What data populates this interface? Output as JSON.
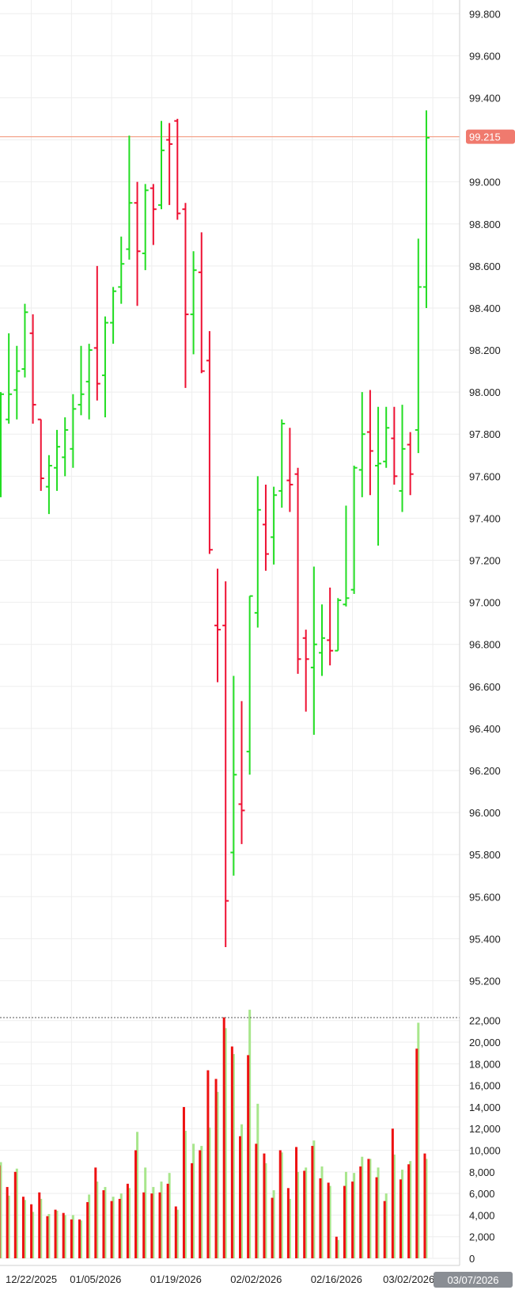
{
  "chart_data": {
    "type": "ohlc",
    "price_axis": {
      "ylim": [
        95.1,
        99.82
      ],
      "ticks": [
        "95.200",
        "95.400",
        "95.600",
        "95.800",
        "96.000",
        "96.200",
        "96.400",
        "96.600",
        "96.800",
        "97.000",
        "97.200",
        "97.400",
        "97.600",
        "97.800",
        "98.000",
        "98.200",
        "98.400",
        "98.600",
        "98.800",
        "99.000",
        "99.200",
        "99.400",
        "99.600",
        "99.800"
      ]
    },
    "volume_axis": {
      "ylim": [
        0,
        23300
      ],
      "ticks": [
        "0",
        "2,000",
        "4,000",
        "6,000",
        "8,000",
        "10,000",
        "12,000",
        "14,000",
        "16,000",
        "18,000",
        "20,000",
        "22,000"
      ]
    },
    "date_ticks": [
      {
        "label": "12/22/2025",
        "index": 4
      },
      {
        "label": "01/05/2026",
        "index": 12
      },
      {
        "label": "01/19/2026",
        "index": 22
      },
      {
        "label": "02/02/2026",
        "index": 32
      },
      {
        "label": "02/16/2026",
        "index": 42
      },
      {
        "label": "03/02/2026",
        "index": 51
      }
    ],
    "last_price": {
      "value": 99.215,
      "label": "99.215"
    },
    "cursor_date": "03/07/2026",
    "colors": {
      "up": "#22dd22",
      "down": "#ee1133",
      "volume_up": "#a8e68c",
      "volume_down": "#ee1111",
      "last_price_line": "#f4a48c",
      "last_price_tag": "#f07a6e",
      "cursor_tag": "#8a8e94"
    },
    "bars": [
      {
        "o": 97.87,
        "h": 98.0,
        "l": 97.5,
        "c": 97.99
      },
      {
        "o": 97.87,
        "h": 98.28,
        "l": 97.85,
        "c": 97.99
      },
      {
        "o": 98.01,
        "h": 98.22,
        "l": 97.87,
        "c": 98.1
      },
      {
        "o": 98.11,
        "h": 98.42,
        "l": 98.07,
        "c": 98.38
      },
      {
        "o": 98.28,
        "h": 98.37,
        "l": 97.85,
        "c": 97.94
      },
      {
        "o": 97.87,
        "h": 97.87,
        "l": 97.53,
        "c": 97.59
      },
      {
        "o": 97.55,
        "h": 97.7,
        "l": 97.42,
        "c": 97.65
      },
      {
        "o": 97.64,
        "h": 97.82,
        "l": 97.53,
        "c": 97.74
      },
      {
        "o": 97.69,
        "h": 97.88,
        "l": 97.6,
        "c": 97.82
      },
      {
        "o": 97.73,
        "h": 97.99,
        "l": 97.64,
        "c": 97.92
      },
      {
        "o": 97.94,
        "h": 98.22,
        "l": 97.89,
        "c": 97.99
      },
      {
        "o": 98.05,
        "h": 98.23,
        "l": 97.87,
        "c": 98.2
      },
      {
        "o": 98.21,
        "h": 98.6,
        "l": 97.96,
        "c": 98.04
      },
      {
        "o": 98.08,
        "h": 98.36,
        "l": 97.88,
        "c": 98.33
      },
      {
        "o": 98.33,
        "h": 98.5,
        "l": 98.23,
        "c": 98.48
      },
      {
        "o": 98.5,
        "h": 98.74,
        "l": 98.42,
        "c": 98.61
      },
      {
        "o": 98.68,
        "h": 99.22,
        "l": 98.63,
        "c": 98.9
      },
      {
        "o": 98.9,
        "h": 99.0,
        "l": 98.41,
        "c": 98.67
      },
      {
        "o": 98.66,
        "h": 98.99,
        "l": 98.58,
        "c": 98.96
      },
      {
        "o": 98.97,
        "h": 98.99,
        "l": 98.7,
        "c": 98.87
      },
      {
        "o": 98.89,
        "h": 99.29,
        "l": 98.87,
        "c": 99.15
      },
      {
        "o": 99.2,
        "h": 99.28,
        "l": 98.89,
        "c": 99.18
      },
      {
        "o": 99.29,
        "h": 99.3,
        "l": 98.82,
        "c": 98.85
      },
      {
        "o": 98.87,
        "h": 98.9,
        "l": 98.02,
        "c": 98.37
      },
      {
        "o": 98.37,
        "h": 98.67,
        "l": 98.18,
        "c": 98.58
      },
      {
        "o": 98.57,
        "h": 98.76,
        "l": 98.09,
        "c": 98.1
      },
      {
        "o": 98.15,
        "h": 98.29,
        "l": 97.23,
        "c": 97.25
      },
      {
        "o": 96.89,
        "h": 97.16,
        "l": 96.62,
        "c": 96.87
      },
      {
        "o": 96.89,
        "h": 97.1,
        "l": 95.36,
        "c": 95.58
      },
      {
        "o": 95.81,
        "h": 96.65,
        "l": 95.7,
        "c": 96.18
      },
      {
        "o": 96.04,
        "h": 96.53,
        "l": 95.85,
        "c": 96.01
      },
      {
        "o": 96.29,
        "h": 97.03,
        "l": 96.18,
        "c": 97.03
      },
      {
        "o": 96.95,
        "h": 97.6,
        "l": 96.88,
        "c": 97.44
      },
      {
        "o": 97.37,
        "h": 97.56,
        "l": 97.15,
        "c": 97.23
      },
      {
        "o": 97.31,
        "h": 97.55,
        "l": 97.18,
        "c": 97.51
      },
      {
        "o": 97.53,
        "h": 97.87,
        "l": 97.45,
        "c": 97.85
      },
      {
        "o": 97.58,
        "h": 97.83,
        "l": 97.43,
        "c": 97.56
      },
      {
        "o": 97.61,
        "h": 97.64,
        "l": 96.66,
        "c": 96.73
      },
      {
        "o": 96.83,
        "h": 96.87,
        "l": 96.48,
        "c": 96.73
      },
      {
        "o": 96.69,
        "h": 97.17,
        "l": 96.37,
        "c": 96.8
      },
      {
        "o": 96.76,
        "h": 96.99,
        "l": 96.65,
        "c": 96.83
      },
      {
        "o": 96.82,
        "h": 97.07,
        "l": 96.7,
        "c": 96.77
      },
      {
        "o": 96.77,
        "h": 97.02,
        "l": 96.77,
        "c": 97.01
      },
      {
        "o": 96.99,
        "h": 97.46,
        "l": 96.98,
        "c": 97.02
      },
      {
        "o": 97.06,
        "h": 97.65,
        "l": 97.04,
        "c": 97.64
      },
      {
        "o": 97.63,
        "h": 98.0,
        "l": 97.5,
        "c": 97.8
      },
      {
        "o": 97.81,
        "h": 98.01,
        "l": 97.51,
        "c": 97.72
      },
      {
        "o": 97.65,
        "h": 97.93,
        "l": 97.27,
        "c": 97.66
      },
      {
        "o": 97.67,
        "h": 97.93,
        "l": 97.64,
        "c": 97.83
      },
      {
        "o": 97.78,
        "h": 97.93,
        "l": 97.56,
        "c": 97.6
      },
      {
        "o": 97.53,
        "h": 97.94,
        "l": 97.43,
        "c": 97.73
      },
      {
        "o": 97.75,
        "h": 97.81,
        "l": 97.51,
        "c": 97.61
      },
      {
        "o": 97.82,
        "h": 98.73,
        "l": 97.71,
        "c": 98.5
      },
      {
        "o": 98.5,
        "h": 99.34,
        "l": 98.4,
        "c": 99.21
      }
    ],
    "volume": [
      {
        "down": 8600,
        "up": 8900
      },
      {
        "down": 6600,
        "up": 5800
      },
      {
        "down": 8000,
        "up": 8300
      },
      {
        "down": 5700,
        "up": 5400
      },
      {
        "down": 5000,
        "up": 4300
      },
      {
        "down": 6100,
        "up": 5500
      },
      {
        "down": 3900,
        "up": 4100
      },
      {
        "down": 4500,
        "up": 4400
      },
      {
        "down": 4200,
        "up": 4000
      },
      {
        "down": 3600,
        "up": 4000
      },
      {
        "down": 3600,
        "up": 3500
      },
      {
        "down": 5200,
        "up": 5900
      },
      {
        "down": 8400,
        "up": 7100
      },
      {
        "down": 6300,
        "up": 6600
      },
      {
        "down": 5300,
        "up": 5700
      },
      {
        "down": 5500,
        "up": 6000
      },
      {
        "down": 6900,
        "up": 6500
      },
      {
        "down": 10000,
        "up": 11700
      },
      {
        "down": 6100,
        "up": 8400
      },
      {
        "down": 6000,
        "up": 6600
      },
      {
        "down": 6100,
        "up": 7100
      },
      {
        "down": 6900,
        "up": 7900
      },
      {
        "down": 4800,
        "up": 4500
      },
      {
        "down": 14000,
        "up": 11800
      },
      {
        "down": 8800,
        "up": 10600
      },
      {
        "down": 10000,
        "up": 10400
      },
      {
        "down": 17400,
        "up": 12100
      },
      {
        "down": 16600,
        "up": 15400
      },
      {
        "down": 22300,
        "up": 21300
      },
      {
        "down": 19600,
        "up": 18900
      },
      {
        "down": 11300,
        "up": 12400
      },
      {
        "down": 18800,
        "up": 23000
      },
      {
        "down": 10600,
        "up": 14300
      },
      {
        "down": 9700,
        "up": 8800
      },
      {
        "down": 5600,
        "up": 6300
      },
      {
        "down": 10000,
        "up": 9800
      },
      {
        "down": 6500,
        "up": 5500
      },
      {
        "down": 10300,
        "up": 8000
      },
      {
        "down": 8100,
        "up": 8400
      },
      {
        "down": 10400,
        "up": 10900
      },
      {
        "down": 7400,
        "up": 8500
      },
      {
        "down": 7000,
        "up": 6700
      },
      {
        "down": 2000,
        "up": 1700
      },
      {
        "down": 6700,
        "up": 8000
      },
      {
        "down": 7100,
        "up": 7900
      },
      {
        "down": 8500,
        "up": 9400
      },
      {
        "down": 9200,
        "up": 9200
      },
      {
        "down": 7500,
        "up": 8400
      },
      {
        "down": 5300,
        "up": 6000
      },
      {
        "down": 12000,
        "up": 9600
      },
      {
        "down": 7300,
        "up": 8200
      },
      {
        "down": 8700,
        "up": 9000
      },
      {
        "down": 19400,
        "up": 21800
      },
      {
        "down": 9700,
        "up": 9200
      }
    ]
  }
}
